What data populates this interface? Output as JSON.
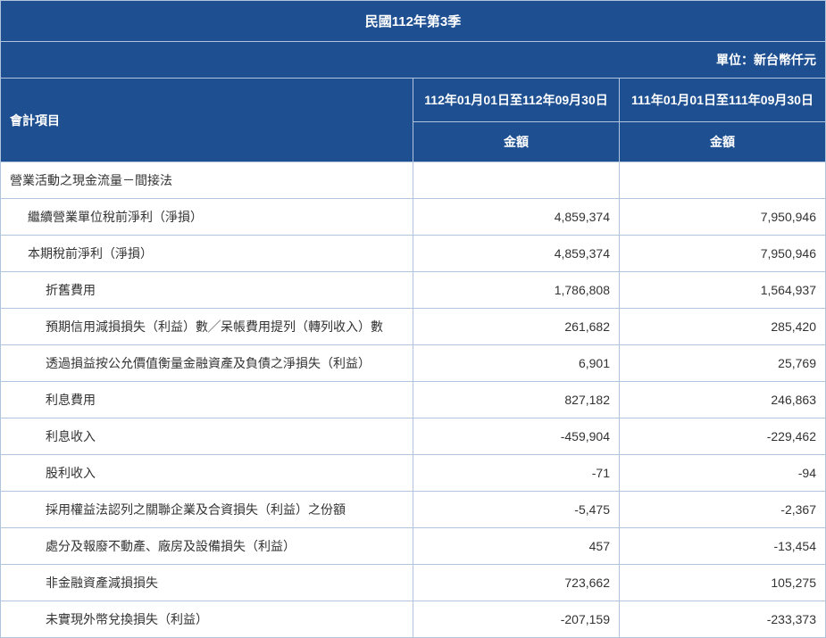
{
  "title": "民國112年第3季",
  "unit_label": "單位：新台幣仟元",
  "columns": {
    "item_header": "會計項目",
    "period1_header": "112年01月01日至112年09月30日",
    "period2_header": "111年01月01日至111年09月30日",
    "amount_label": "金額"
  },
  "section_label": "營業活動之現金流量－間接法",
  "rows": [
    {
      "label": "繼續營業單位稅前淨利（淨損）",
      "indent": 1,
      "v1": "4,859,374",
      "v2": "7,950,946"
    },
    {
      "label": "本期稅前淨利（淨損）",
      "indent": 1,
      "v1": "4,859,374",
      "v2": "7,950,946"
    },
    {
      "label": "折舊費用",
      "indent": 2,
      "v1": "1,786,808",
      "v2": "1,564,937"
    },
    {
      "label": "預期信用減損損失（利益）數╱呆帳費用提列（轉列收入）數",
      "indent": 2,
      "v1": "261,682",
      "v2": "285,420"
    },
    {
      "label": "透過損益按公允價值衡量金融資產及負債之淨損失（利益）",
      "indent": 2,
      "v1": "6,901",
      "v2": "25,769"
    },
    {
      "label": "利息費用",
      "indent": 2,
      "v1": "827,182",
      "v2": "246,863"
    },
    {
      "label": "利息收入",
      "indent": 2,
      "v1": "-459,904",
      "v2": "-229,462"
    },
    {
      "label": "股利收入",
      "indent": 2,
      "v1": "-71",
      "v2": "-94"
    },
    {
      "label": "採用權益法認列之關聯企業及合資損失（利益）之份額",
      "indent": 2,
      "v1": "-5,475",
      "v2": "-2,367"
    },
    {
      "label": "處分及報廢不動產、廠房及設備損失（利益）",
      "indent": 2,
      "v1": "457",
      "v2": "-13,454"
    },
    {
      "label": "非金融資產減損損失",
      "indent": 2,
      "v1": "723,662",
      "v2": "105,275"
    },
    {
      "label": "未實現外幣兌換損失（利益）",
      "indent": 2,
      "v1": "-207,159",
      "v2": "-233,373"
    }
  ],
  "colors": {
    "header_bg": "#1d4f91",
    "header_text": "#ffffff",
    "border": "#b0c4de",
    "body_text": "#333333",
    "body_bg": "#ffffff"
  }
}
